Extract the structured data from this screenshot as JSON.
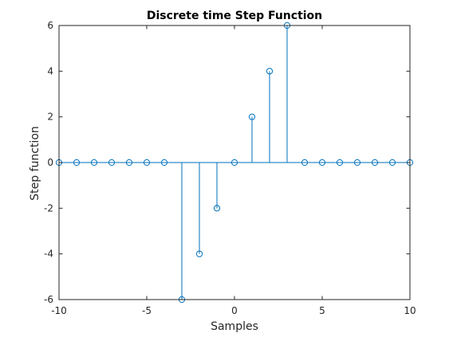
{
  "chart_data": {
    "type": "stem",
    "title": "Discrete time Step Function",
    "xlabel": "Samples",
    "ylabel": "Step function",
    "xlim": [
      -10,
      10
    ],
    "ylim": [
      -6,
      6
    ],
    "x_ticks": [
      -10,
      -5,
      0,
      5,
      10
    ],
    "y_ticks": [
      -6,
      -4,
      -2,
      0,
      2,
      4,
      6
    ],
    "x_tick_labels": [
      "-10",
      "-5",
      "0",
      "5",
      "10"
    ],
    "y_tick_labels": [
      "-6",
      "-4",
      "-2",
      "0",
      "2",
      "4",
      "6"
    ],
    "grid": false,
    "box": true,
    "series": [
      {
        "color": "#0072BD",
        "marker": "circle",
        "x": [
          -10,
          -9,
          -8,
          -7,
          -6,
          -5,
          -4,
          -3,
          -2,
          -1,
          0,
          1,
          2,
          3,
          4,
          5,
          6,
          7,
          8,
          9,
          10
        ],
        "y": [
          0,
          0,
          0,
          0,
          0,
          0,
          0,
          -6,
          -4,
          -2,
          0,
          2,
          4,
          6,
          0,
          0,
          0,
          0,
          0,
          0,
          0
        ]
      }
    ]
  }
}
